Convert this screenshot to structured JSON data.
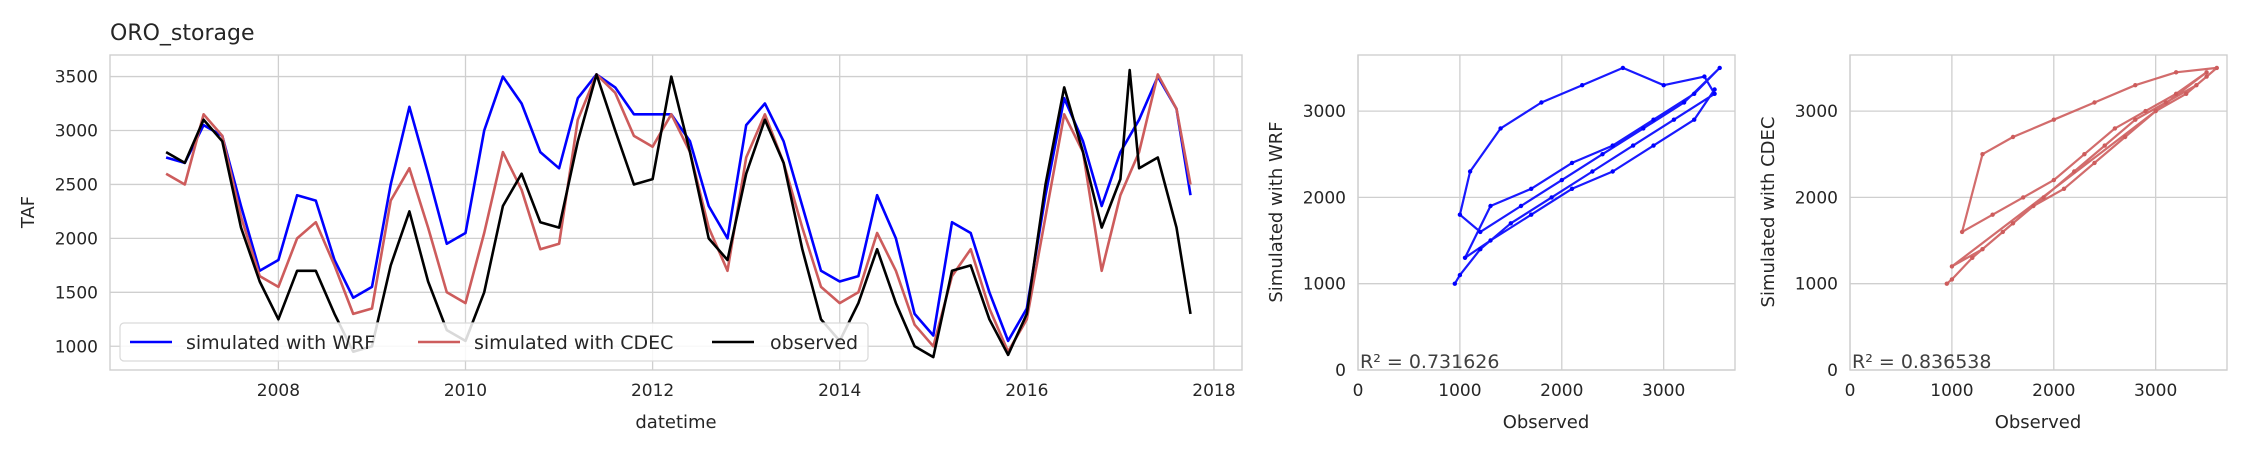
{
  "chart_data": [
    {
      "type": "line",
      "title": "ORO_storage",
      "xlabel": "datetime",
      "ylabel": "TAF",
      "xlim": [
        2006.2,
        2018.3
      ],
      "ylim": [
        780,
        3700
      ],
      "xticks": [
        "2008",
        "2010",
        "2012",
        "2014",
        "2016",
        "2018"
      ],
      "yticks": [
        "1000",
        "1500",
        "2000",
        "2500",
        "3000",
        "3500"
      ],
      "grid": true,
      "legend": "lower-left, 3 columns",
      "series": [
        {
          "name": "simulated with WRF",
          "color": "#0000ff",
          "x": [
            2006.8,
            2007.0,
            2007.2,
            2007.4,
            2007.6,
            2007.8,
            2008.0,
            2008.2,
            2008.4,
            2008.6,
            2008.8,
            2009.0,
            2009.2,
            2009.4,
            2009.6,
            2009.8,
            2010.0,
            2010.2,
            2010.4,
            2010.6,
            2010.8,
            2011.0,
            2011.2,
            2011.4,
            2011.6,
            2011.8,
            2012.0,
            2012.2,
            2012.4,
            2012.6,
            2012.8,
            2013.0,
            2013.2,
            2013.4,
            2013.6,
            2013.8,
            2014.0,
            2014.2,
            2014.4,
            2014.6,
            2014.8,
            2015.0,
            2015.2,
            2015.4,
            2015.6,
            2015.8,
            2016.0,
            2016.2,
            2016.4,
            2016.6,
            2016.8,
            2017.0,
            2017.2,
            2017.4,
            2017.6,
            2017.75
          ],
          "y": [
            2750,
            2700,
            3050,
            2950,
            2300,
            1700,
            1800,
            2400,
            2350,
            1800,
            1450,
            1550,
            2500,
            3220,
            2600,
            1950,
            2050,
            3000,
            3500,
            3250,
            2800,
            2650,
            3300,
            3520,
            3400,
            3150,
            3150,
            3150,
            2900,
            2300,
            2000,
            3050,
            3250,
            2900,
            2300,
            1700,
            1600,
            1650,
            2400,
            2000,
            1300,
            1100,
            2150,
            2050,
            1500,
            1050,
            1350,
            2400,
            3300,
            2900,
            2300,
            2800,
            3100,
            3500,
            3200,
            2400
          ]
        },
        {
          "name": "simulated with CDEC",
          "color": "#cd5c5c",
          "x": [
            2006.8,
            2007.0,
            2007.2,
            2007.4,
            2007.6,
            2007.8,
            2008.0,
            2008.2,
            2008.4,
            2008.6,
            2008.8,
            2009.0,
            2009.2,
            2009.4,
            2009.6,
            2009.8,
            2010.0,
            2010.2,
            2010.4,
            2010.6,
            2010.8,
            2011.0,
            2011.2,
            2011.4,
            2011.6,
            2011.8,
            2012.0,
            2012.2,
            2012.4,
            2012.6,
            2012.8,
            2013.0,
            2013.2,
            2013.4,
            2013.6,
            2013.8,
            2014.0,
            2014.2,
            2014.4,
            2014.6,
            2014.8,
            2015.0,
            2015.2,
            2015.4,
            2015.6,
            2015.8,
            2016.0,
            2016.2,
            2016.4,
            2016.6,
            2016.8,
            2017.0,
            2017.2,
            2017.4,
            2017.6,
            2017.75
          ],
          "y": [
            2600,
            2500,
            3150,
            2950,
            2200,
            1650,
            1550,
            2000,
            2150,
            1750,
            1300,
            1350,
            2350,
            2650,
            2100,
            1500,
            1400,
            2050,
            2800,
            2450,
            1900,
            1950,
            3100,
            3520,
            3350,
            2950,
            2850,
            3150,
            2800,
            2100,
            1700,
            2750,
            3150,
            2700,
            2100,
            1550,
            1400,
            1500,
            2050,
            1700,
            1200,
            1000,
            1650,
            1900,
            1350,
            950,
            1250,
            2200,
            3150,
            2800,
            1700,
            2400,
            2800,
            3520,
            3200,
            2500
          ]
        },
        {
          "name": "observed",
          "color": "#000000",
          "x": [
            2006.8,
            2007.0,
            2007.2,
            2007.4,
            2007.6,
            2007.8,
            2008.0,
            2008.2,
            2008.4,
            2008.6,
            2008.8,
            2009.0,
            2009.2,
            2009.4,
            2009.6,
            2009.8,
            2010.0,
            2010.2,
            2010.4,
            2010.6,
            2010.8,
            2011.0,
            2011.2,
            2011.4,
            2011.6,
            2011.8,
            2012.0,
            2012.2,
            2012.4,
            2012.6,
            2012.8,
            2013.0,
            2013.2,
            2013.4,
            2013.6,
            2013.8,
            2014.0,
            2014.2,
            2014.4,
            2014.6,
            2014.8,
            2015.0,
            2015.2,
            2015.4,
            2015.6,
            2015.8,
            2016.0,
            2016.2,
            2016.4,
            2016.6,
            2016.8,
            2017.0,
            2017.1,
            2017.2,
            2017.4,
            2017.6,
            2017.75
          ],
          "y": [
            2800,
            2700,
            3100,
            2900,
            2100,
            1600,
            1250,
            1700,
            1700,
            1300,
            950,
            1000,
            1750,
            2250,
            1600,
            1150,
            1050,
            1500,
            2300,
            2600,
            2150,
            2100,
            2900,
            3520,
            3000,
            2500,
            2550,
            3500,
            2800,
            2000,
            1800,
            2600,
            3100,
            2700,
            1900,
            1250,
            1050,
            1400,
            1900,
            1400,
            1000,
            900,
            1700,
            1750,
            1250,
            920,
            1300,
            2500,
            3400,
            2800,
            2100,
            2550,
            3560,
            2650,
            2750,
            2100,
            1300
          ]
        }
      ]
    },
    {
      "type": "scatter",
      "xlabel": "Observed",
      "ylabel": "Simulated with WRF",
      "annotation": "R² = 0.731626",
      "xlim": [
        0,
        3700
      ],
      "ylim": [
        0,
        3650
      ],
      "xticks": [
        "0",
        "1000",
        "2000",
        "3000"
      ],
      "yticks": [
        "0",
        "1000",
        "2000",
        "3000"
      ],
      "color": "#0000ff",
      "x": [
        950,
        1000,
        1200,
        1500,
        1900,
        2300,
        2700,
        3100,
        3500,
        3400,
        3000,
        2600,
        2200,
        1800,
        1400,
        1100,
        1000,
        1200,
        1600,
        2000,
        2400,
        2800,
        3200,
        3550,
        3300,
        2900,
        2500,
        2100,
        1700,
        1300,
        1050,
        1300,
        1700,
        2100,
        2500,
        2900,
        3300,
        3500
      ],
      "y": [
        1000,
        1100,
        1400,
        1700,
        2000,
        2300,
        2600,
        2900,
        3200,
        3400,
        3300,
        3500,
        3300,
        3100,
        2800,
        2300,
        1800,
        1600,
        1900,
        2200,
        2500,
        2800,
        3100,
        3500,
        3200,
        2900,
        2600,
        2400,
        2100,
        1900,
        1300,
        1500,
        1800,
        2100,
        2300,
        2600,
        2900,
        3250
      ]
    },
    {
      "type": "scatter",
      "xlabel": "Observed",
      "ylabel": "Simulated with CDEC",
      "annotation": "R² = 0.836538",
      "xlim": [
        0,
        3700
      ],
      "ylim": [
        0,
        3650
      ],
      "xticks": [
        "0",
        "1000",
        "2000",
        "3000"
      ],
      "yticks": [
        "0",
        "1000",
        "2000",
        "3000"
      ],
      "color": "#cd5c5c",
      "x": [
        950,
        1000,
        1200,
        1500,
        1800,
        2100,
        2400,
        2700,
        3000,
        3300,
        3500,
        3600,
        3200,
        2800,
        2400,
        2000,
        1600,
        1300,
        1100,
        1400,
        1700,
        2000,
        2300,
        2600,
        2900,
        3200,
        3500,
        1000,
        1300,
        1600,
        1900,
        2200,
        2500,
        2800,
        3100,
        3400
      ],
      "y": [
        1000,
        1050,
        1300,
        1600,
        1900,
        2100,
        2400,
        2700,
        3000,
        3200,
        3400,
        3500,
        3450,
        3300,
        3100,
        2900,
        2700,
        2500,
        1600,
        1800,
        2000,
        2200,
        2500,
        2800,
        3000,
        3200,
        3450,
        1200,
        1400,
        1700,
        2000,
        2300,
        2600,
        2900,
        3100,
        3300
      ]
    }
  ]
}
